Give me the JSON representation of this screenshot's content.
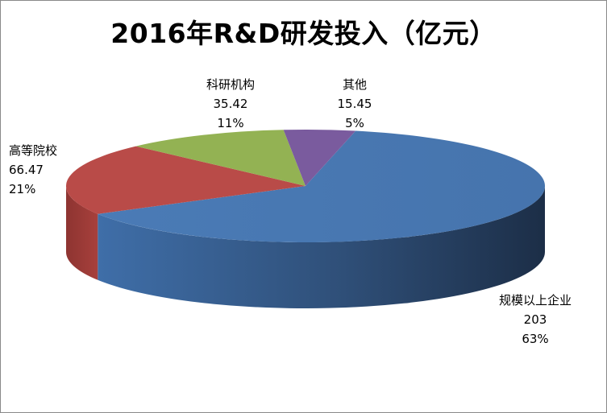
{
  "title": "2016年R&D研发投入（亿元）",
  "chart_data": {
    "type": "pie",
    "variant": "3d",
    "title": "2016年R&D研发投入（亿元）",
    "slices": [
      {
        "name": "规模以上企业",
        "value": 203,
        "percent": "63%",
        "color": "#4a7ab4"
      },
      {
        "name": "高等院校",
        "value": 66.47,
        "percent": "21%",
        "color": "#b94b48"
      },
      {
        "name": "科研机构",
        "value": 35.42,
        "percent": "11%",
        "color": "#93b253"
      },
      {
        "name": "其他",
        "value": 15.45,
        "percent": "5%",
        "color": "#7a5b9e"
      }
    ],
    "labels": [
      {
        "name": "规模以上企业",
        "value": "203",
        "percent": "63%"
      },
      {
        "name": "高等院校",
        "value": "66.47",
        "percent": "21%"
      },
      {
        "name": "科研机构",
        "value": "35.42",
        "percent": "11%"
      },
      {
        "name": "其他",
        "value": "15.45",
        "percent": "5%"
      }
    ]
  }
}
